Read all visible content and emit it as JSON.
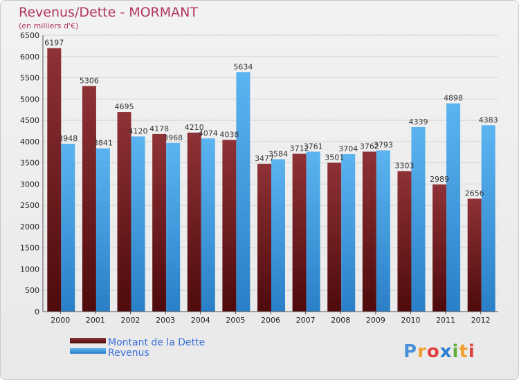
{
  "chart_data": {
    "type": "bar",
    "title": "Revenus/Dette - MORMANT",
    "subtitle": "(en milliers d'€)",
    "categories": [
      "2000",
      "2001",
      "2002",
      "2003",
      "2004",
      "2005",
      "2006",
      "2007",
      "2008",
      "2009",
      "2010",
      "2011",
      "2012"
    ],
    "series": [
      {
        "name": "Montant de la Dette",
        "color": "#7a1e22",
        "values": [
          6197,
          5306,
          4695,
          4178,
          4210,
          4038,
          3477,
          3712,
          3501,
          3762,
          3303,
          2989,
          2656
        ],
        "labels": [
          "6197",
          "5306",
          "4695",
          "4178",
          "4210",
          "4038",
          "3477",
          "3712",
          "3501",
          "3762",
          "3303",
          "2989",
          "2656"
        ]
      },
      {
        "name": "Revenus",
        "color": "#3d9ae0",
        "values": [
          3948,
          3841,
          4120,
          3968,
          4074,
          5634,
          3584,
          3761,
          3704,
          3793,
          4339,
          4898,
          4383
        ],
        "labels": [
          "3948",
          "3841",
          "4120",
          "3968",
          "4074",
          "5634",
          "3584",
          "3761",
          "3704",
          "3793",
          "4339",
          "4898",
          "4383"
        ]
      }
    ],
    "ylim": [
      0,
      6500
    ],
    "yticks": [
      "0",
      "500",
      "1000",
      "1500",
      "2000",
      "2500",
      "3000",
      "3500",
      "4000",
      "4500",
      "5000",
      "5500",
      "6000",
      "6500"
    ],
    "xlabel": "",
    "ylabel": "",
    "grid": true,
    "legend": "bottom-left"
  },
  "brand": {
    "letters": [
      "P",
      "r",
      "o",
      "x",
      "i",
      "t",
      "i"
    ],
    "colors": [
      "#4a90d9",
      "#f0a030",
      "#e04040",
      "#2b7fd0",
      "#60b040",
      "#f0a030",
      "#e04040"
    ]
  }
}
